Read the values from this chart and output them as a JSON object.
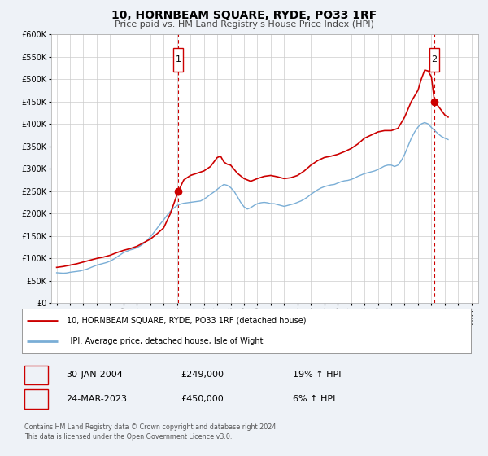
{
  "title": "10, HORNBEAM SQUARE, RYDE, PO33 1RF",
  "subtitle": "Price paid vs. HM Land Registry's House Price Index (HPI)",
  "ylim": [
    0,
    600000
  ],
  "yticks": [
    0,
    50000,
    100000,
    150000,
    200000,
    250000,
    300000,
    350000,
    400000,
    450000,
    500000,
    550000,
    600000
  ],
  "xlim_start": 1994.6,
  "xlim_end": 2026.5,
  "xticks": [
    1995,
    1996,
    1997,
    1998,
    1999,
    2000,
    2001,
    2002,
    2003,
    2004,
    2005,
    2006,
    2007,
    2008,
    2009,
    2010,
    2011,
    2012,
    2013,
    2014,
    2015,
    2016,
    2017,
    2018,
    2019,
    2020,
    2021,
    2022,
    2023,
    2024,
    2025,
    2026
  ],
  "red_color": "#cc0000",
  "blue_color": "#7aaed6",
  "grid_color": "#cccccc",
  "bg_color": "#eef2f7",
  "plot_bg": "#ffffff",
  "marker1_date": 2004.08,
  "marker1_value": 249000,
  "marker2_date": 2023.23,
  "marker2_value": 450000,
  "vline1_x": 2004.08,
  "vline2_x": 2023.23,
  "legend_label_red": "10, HORNBEAM SQUARE, RYDE, PO33 1RF (detached house)",
  "legend_label_blue": "HPI: Average price, detached house, Isle of Wight",
  "table_row1": [
    "1",
    "30-JAN-2004",
    "£249,000",
    "19% ↑ HPI"
  ],
  "table_row2": [
    "2",
    "24-MAR-2023",
    "£450,000",
    "6% ↑ HPI"
  ],
  "footer1": "Contains HM Land Registry data © Crown copyright and database right 2024.",
  "footer2": "This data is licensed under the Open Government Licence v3.0.",
  "hpi_data": {
    "years": [
      1995.0,
      1995.25,
      1995.5,
      1995.75,
      1996.0,
      1996.25,
      1996.5,
      1996.75,
      1997.0,
      1997.25,
      1997.5,
      1997.75,
      1998.0,
      1998.25,
      1998.5,
      1998.75,
      1999.0,
      1999.25,
      1999.5,
      1999.75,
      2000.0,
      2000.25,
      2000.5,
      2000.75,
      2001.0,
      2001.25,
      2001.5,
      2001.75,
      2002.0,
      2002.25,
      2002.5,
      2002.75,
      2003.0,
      2003.25,
      2003.5,
      2003.75,
      2004.0,
      2004.25,
      2004.5,
      2004.75,
      2005.0,
      2005.25,
      2005.5,
      2005.75,
      2006.0,
      2006.25,
      2006.5,
      2006.75,
      2007.0,
      2007.25,
      2007.5,
      2007.75,
      2008.0,
      2008.25,
      2008.5,
      2008.75,
      2009.0,
      2009.25,
      2009.5,
      2009.75,
      2010.0,
      2010.25,
      2010.5,
      2010.75,
      2011.0,
      2011.25,
      2011.5,
      2011.75,
      2012.0,
      2012.25,
      2012.5,
      2012.75,
      2013.0,
      2013.25,
      2013.5,
      2013.75,
      2014.0,
      2014.25,
      2014.5,
      2014.75,
      2015.0,
      2015.25,
      2015.5,
      2015.75,
      2016.0,
      2016.25,
      2016.5,
      2016.75,
      2017.0,
      2017.25,
      2017.5,
      2017.75,
      2018.0,
      2018.25,
      2018.5,
      2018.75,
      2019.0,
      2019.25,
      2019.5,
      2019.75,
      2020.0,
      2020.25,
      2020.5,
      2020.75,
      2021.0,
      2021.25,
      2021.5,
      2021.75,
      2022.0,
      2022.25,
      2022.5,
      2022.75,
      2023.0,
      2023.25,
      2023.5,
      2023.75,
      2024.0,
      2024.25
    ],
    "values": [
      68000,
      67500,
      67000,
      67500,
      69000,
      70000,
      71000,
      72000,
      74000,
      76000,
      79000,
      82000,
      85000,
      87000,
      89000,
      91000,
      94000,
      98000,
      103000,
      108000,
      113000,
      116000,
      119000,
      121000,
      124000,
      128000,
      133000,
      140000,
      148000,
      157000,
      167000,
      177000,
      186000,
      196000,
      205000,
      212000,
      218000,
      221000,
      223000,
      224000,
      225000,
      226000,
      227000,
      228000,
      232000,
      237000,
      243000,
      248000,
      254000,
      260000,
      265000,
      263000,
      258000,
      250000,
      238000,
      225000,
      215000,
      210000,
      213000,
      218000,
      222000,
      224000,
      225000,
      224000,
      222000,
      222000,
      220000,
      218000,
      216000,
      218000,
      220000,
      222000,
      225000,
      228000,
      232000,
      237000,
      243000,
      248000,
      253000,
      257000,
      260000,
      262000,
      264000,
      265000,
      268000,
      271000,
      273000,
      274000,
      276000,
      279000,
      283000,
      286000,
      289000,
      291000,
      293000,
      295000,
      298000,
      302000,
      306000,
      308000,
      308000,
      305000,
      308000,
      318000,
      332000,
      350000,
      368000,
      382000,
      393000,
      400000,
      403000,
      400000,
      392000,
      385000,
      378000,
      372000,
      368000,
      365000
    ]
  },
  "red_data": {
    "years": [
      1995.0,
      1995.5,
      1996.0,
      1996.5,
      1997.0,
      1997.5,
      1998.0,
      1998.5,
      1999.0,
      1999.5,
      2000.0,
      2000.5,
      2001.0,
      2001.5,
      2002.0,
      2002.5,
      2003.0,
      2003.5,
      2004.08,
      2004.5,
      2005.0,
      2005.5,
      2006.0,
      2006.5,
      2007.0,
      2007.25,
      2007.5,
      2007.75,
      2008.0,
      2008.5,
      2009.0,
      2009.5,
      2010.0,
      2010.5,
      2011.0,
      2011.5,
      2012.0,
      2012.5,
      2013.0,
      2013.5,
      2014.0,
      2014.5,
      2015.0,
      2015.5,
      2016.0,
      2016.5,
      2017.0,
      2017.5,
      2018.0,
      2018.5,
      2019.0,
      2019.5,
      2020.0,
      2020.5,
      2021.0,
      2021.5,
      2022.0,
      2022.25,
      2022.5,
      2022.75,
      2023.0,
      2023.23,
      2023.5,
      2023.75,
      2024.0,
      2024.25
    ],
    "values": [
      80000,
      82000,
      85000,
      88000,
      92000,
      96000,
      100000,
      103000,
      107000,
      113000,
      118000,
      122000,
      127000,
      135000,
      143000,
      155000,
      168000,
      200000,
      249000,
      275000,
      285000,
      290000,
      295000,
      305000,
      325000,
      328000,
      315000,
      310000,
      308000,
      290000,
      278000,
      272000,
      278000,
      283000,
      285000,
      282000,
      278000,
      280000,
      285000,
      295000,
      308000,
      318000,
      325000,
      328000,
      332000,
      338000,
      345000,
      355000,
      368000,
      375000,
      382000,
      385000,
      385000,
      390000,
      415000,
      450000,
      475000,
      500000,
      520000,
      518000,
      505000,
      450000,
      440000,
      430000,
      420000,
      415000
    ]
  }
}
